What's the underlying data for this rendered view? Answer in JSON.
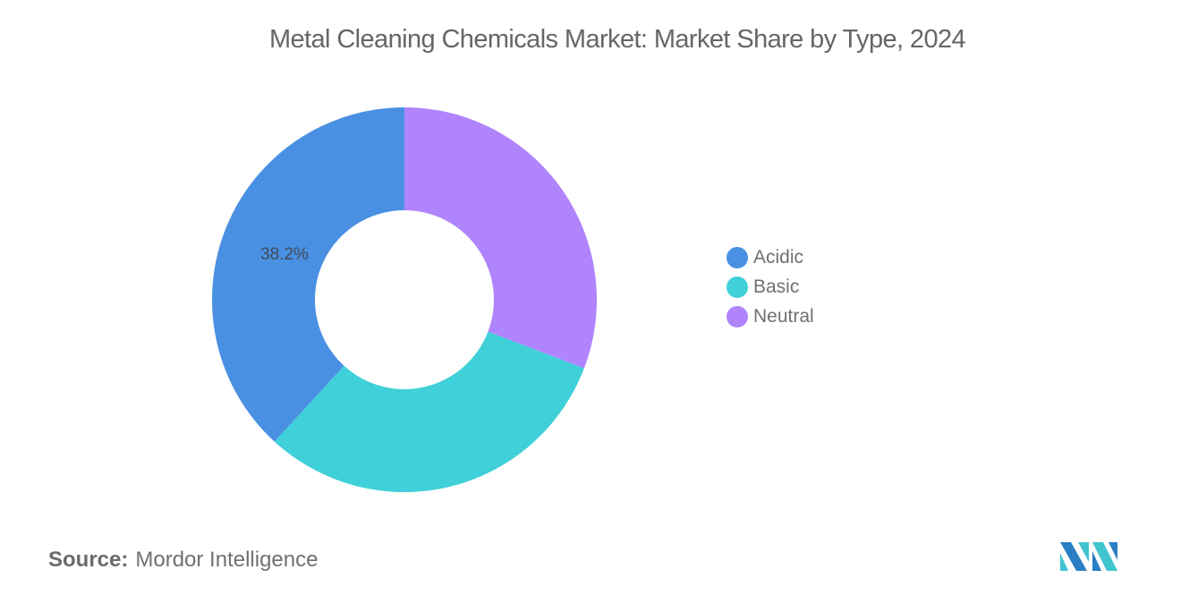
{
  "title": "Metal Cleaning Chemicals Market: Market Share by Type, 2024",
  "source": {
    "label": "Source:",
    "value": "Mordor Intelligence"
  },
  "legend": [
    {
      "label": "Acidic",
      "color": "#4a90e2"
    },
    {
      "label": "Basic",
      "color": "#40d0d9"
    },
    {
      "label": "Neutral",
      "color": "#b084fc"
    }
  ],
  "slice_labels": {
    "acidic": "38.2%"
  },
  "logo": {
    "name": "mordor-intelligence-logo"
  },
  "chart_data": {
    "type": "pie",
    "subtype": "donut",
    "title": "Metal Cleaning Chemicals Market: Market Share by Type, 2024",
    "categories": [
      "Acidic",
      "Basic",
      "Neutral"
    ],
    "values": [
      38.2,
      31.0,
      30.8
    ],
    "units": "%",
    "colors": [
      "#4a90e2",
      "#40d0d9",
      "#b084fc"
    ],
    "labeled_values": {
      "Acidic": "38.2%"
    },
    "start_angle": "12 o'clock, counter-clockwise order: Acidic on left; clockwise: Neutral, Basic, Acidic",
    "legend_position": "right",
    "source": "Mordor Intelligence"
  }
}
